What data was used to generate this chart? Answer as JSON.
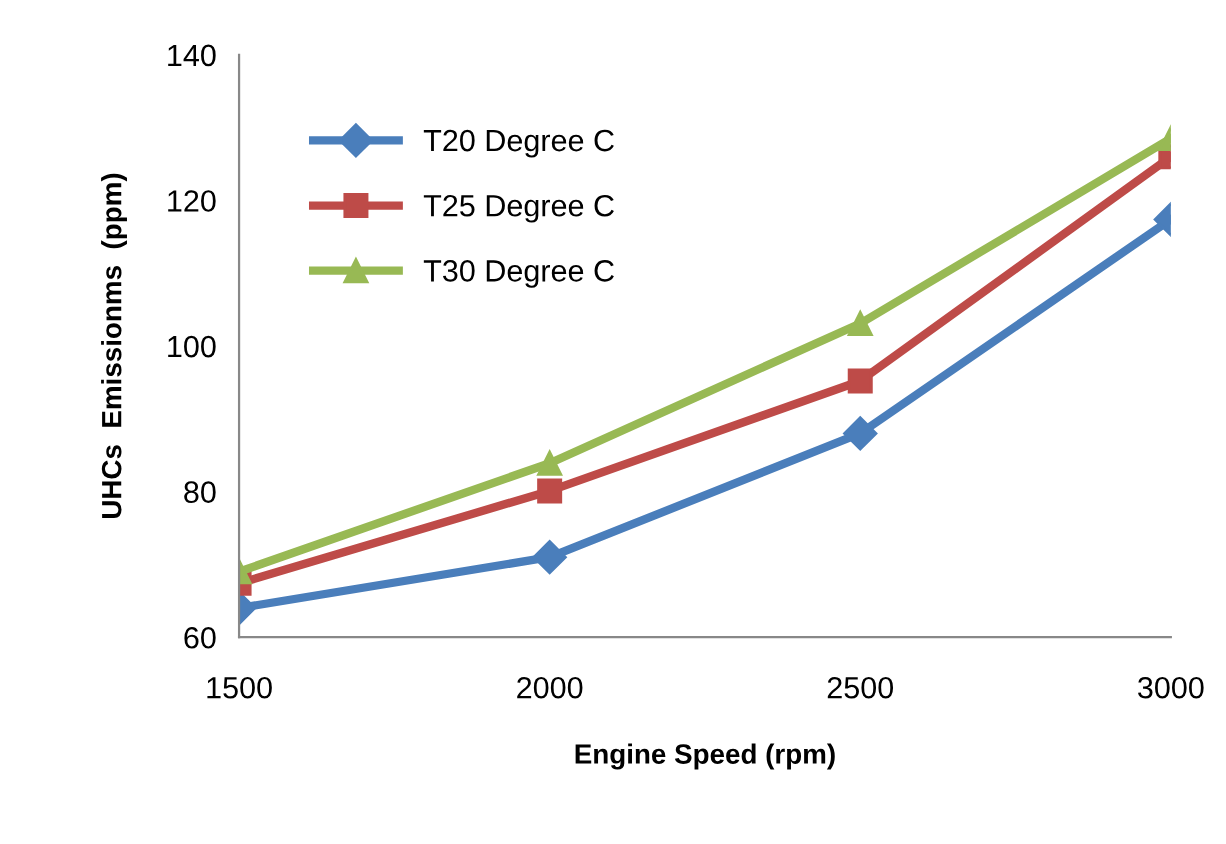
{
  "chart_data": {
    "type": "line",
    "xlabel": "Engine Speed (rpm)",
    "ylabel": "UHCs  Emissionms  (ppm)",
    "x": [
      1500,
      2000,
      2500,
      3000
    ],
    "series": [
      {
        "name": "T20 Degree C",
        "color": "#4a7ebb",
        "values": [
          64.0,
          71.0,
          88.0,
          117.4
        ],
        "marker": "diamond"
      },
      {
        "name": "T25 Degree C",
        "color": "#be4b48",
        "values": [
          67.4,
          80.1,
          95.2,
          126.0
        ],
        "marker": "square"
      },
      {
        "name": "T30 Degree C",
        "color": "#98b954",
        "values": [
          69.0,
          83.9,
          103.1,
          128.5
        ],
        "marker": "triangle"
      }
    ],
    "xlim": [
      1500,
      3000
    ],
    "xticks": [
      1500,
      2000,
      2500,
      3000
    ],
    "ylim": [
      60,
      140
    ],
    "yticks": [
      60,
      80,
      100,
      120,
      140
    ],
    "grid": false,
    "legend": "top left",
    "line_style": "solid"
  }
}
